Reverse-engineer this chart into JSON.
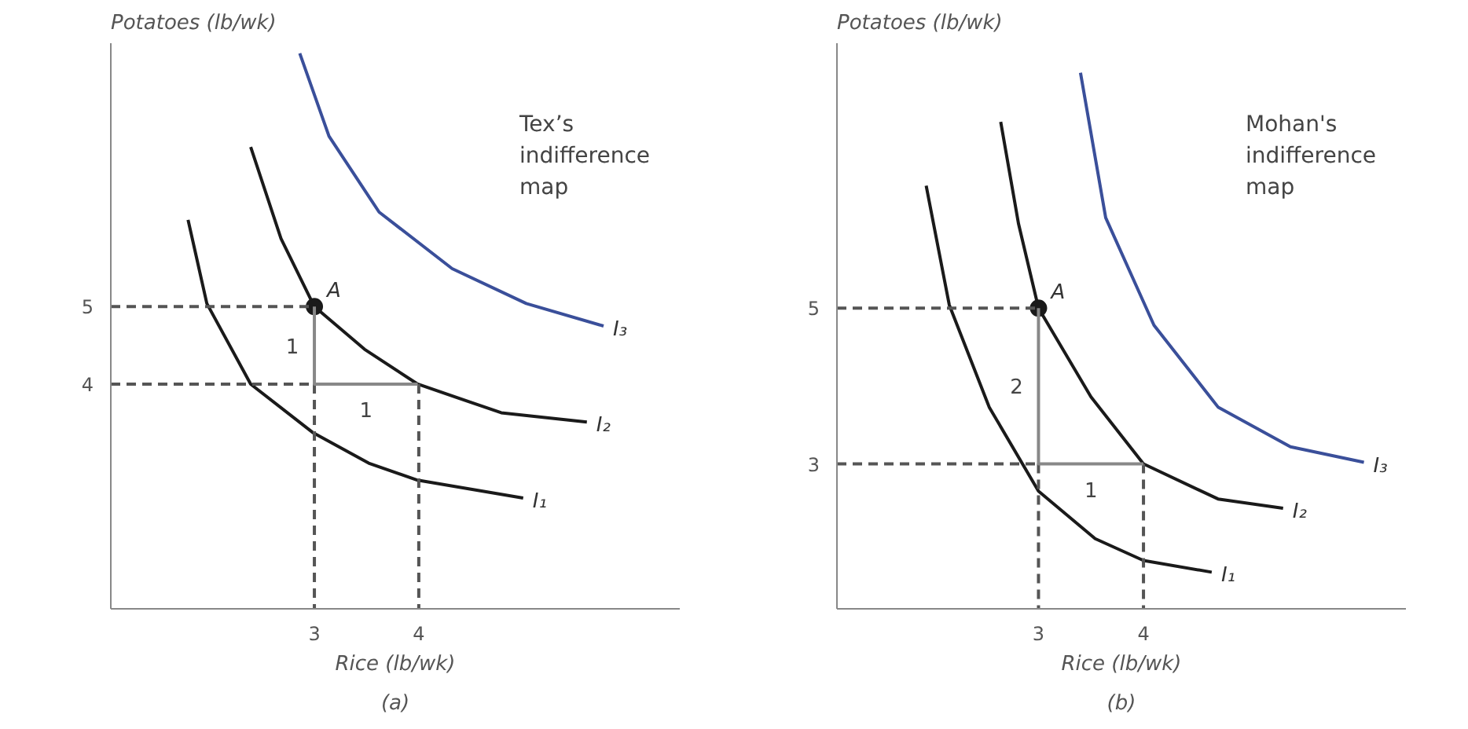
{
  "chart_data": [
    {
      "type": "line",
      "title": "(a)",
      "xlabel": "Rice (lb/wk)",
      "ylabel": "Potatoes (lb/wk)",
      "xlim": [
        1.05,
        6.5
      ],
      "ylim": [
        1.1,
        8.4
      ],
      "xticks": [
        3,
        4
      ],
      "yticks": [
        4,
        5
      ],
      "grid": false,
      "series": [
        {
          "name": "I₁",
          "color": "#1a1a1a",
          "x": [
            1.79,
            1.97,
            2.39,
            2.99,
            3.52,
            3.99,
            5.0
          ],
          "values": [
            6.12,
            5.04,
            4.0,
            3.37,
            2.98,
            2.76,
            2.53
          ]
        },
        {
          "name": "I₂",
          "color": "#1a1a1a",
          "x": [
            2.39,
            2.68,
            3.0,
            3.48,
            3.99,
            4.79,
            5.61
          ],
          "values": [
            7.06,
            5.88,
            5.0,
            4.45,
            4.0,
            3.63,
            3.51
          ]
        },
        {
          "name": "I₃",
          "color": "#3a4f9a",
          "x": [
            2.86,
            3.14,
            3.62,
            4.32,
            5.03,
            5.77
          ],
          "values": [
            8.27,
            7.2,
            6.22,
            5.49,
            5.04,
            4.75
          ]
        },
        {
          "type": "scatter",
          "name": "A",
          "color": "#1a1a1a",
          "marker": "circle",
          "x": [
            3
          ],
          "values": [
            5
          ]
        },
        {
          "color": "#555555",
          "line_style": "dashed",
          "x": [
            1.05,
            3
          ],
          "values": [
            5,
            5
          ]
        },
        {
          "color": "#555555",
          "line_style": "dashed",
          "x": [
            1.05,
            3
          ],
          "values": [
            4,
            4
          ]
        },
        {
          "color": "#555555",
          "line_style": "dashed",
          "x": [
            3,
            3
          ],
          "values": [
            4,
            1.1
          ]
        },
        {
          "color": "#555555",
          "line_style": "dashed",
          "x": [
            4,
            4
          ],
          "values": [
            4,
            1.1
          ]
        },
        {
          "color": "#888888",
          "line_style": "solid",
          "x": [
            3,
            3,
            3.99
          ],
          "values": [
            5,
            4,
            4
          ]
        }
      ],
      "annotations": [
        "Tex’s\nindifference\nmap",
        "1",
        "1"
      ]
    },
    {
      "type": "line",
      "title": "(b)",
      "xlabel": "Rice (lb/wk)",
      "ylabel": "Potatoes (lb/wk)",
      "xlim": [
        1.08,
        6.5
      ],
      "ylim": [
        1.14,
        8.4
      ],
      "xticks": [
        3,
        4
      ],
      "yticks": [
        3,
        5
      ],
      "grid": false,
      "series": [
        {
          "name": "I₁",
          "color": "#1a1a1a",
          "x": [
            1.93,
            2.15,
            2.53,
            3.0,
            3.54,
            4.0,
            4.65
          ],
          "values": [
            6.57,
            5.04,
            3.73,
            2.65,
            2.04,
            1.76,
            1.61
          ]
        },
        {
          "name": "I₂",
          "color": "#1a1a1a",
          "x": [
            2.64,
            2.81,
            3.0,
            3.5,
            4.0,
            4.71,
            5.33
          ],
          "values": [
            7.39,
            6.08,
            5.0,
            3.86,
            3.0,
            2.55,
            2.43
          ]
        },
        {
          "name": "I₃",
          "color": "#3a4f9a",
          "x": [
            3.4,
            3.64,
            4.1,
            4.71,
            5.4,
            6.1
          ],
          "values": [
            8.02,
            6.16,
            4.78,
            3.73,
            3.22,
            3.02
          ]
        },
        {
          "type": "scatter",
          "name": "A",
          "color": "#1a1a1a",
          "marker": "circle",
          "x": [
            3
          ],
          "values": [
            5
          ]
        },
        {
          "color": "#555555",
          "line_style": "dashed",
          "x": [
            1.08,
            3
          ],
          "values": [
            5,
            5
          ]
        },
        {
          "color": "#555555",
          "line_style": "dashed",
          "x": [
            1.08,
            3
          ],
          "values": [
            3,
            3
          ]
        },
        {
          "color": "#555555",
          "line_style": "dashed",
          "x": [
            3,
            3
          ],
          "values": [
            3,
            1.14
          ]
        },
        {
          "color": "#555555",
          "line_style": "dashed",
          "x": [
            4,
            4
          ],
          "values": [
            3,
            1.14
          ]
        },
        {
          "color": "#888888",
          "line_style": "solid",
          "x": [
            3,
            3,
            4
          ],
          "values": [
            5,
            3,
            3
          ]
        }
      ],
      "annotations": [
        "Mohan's\nindifference\nmap",
        "2",
        "1"
      ]
    }
  ]
}
